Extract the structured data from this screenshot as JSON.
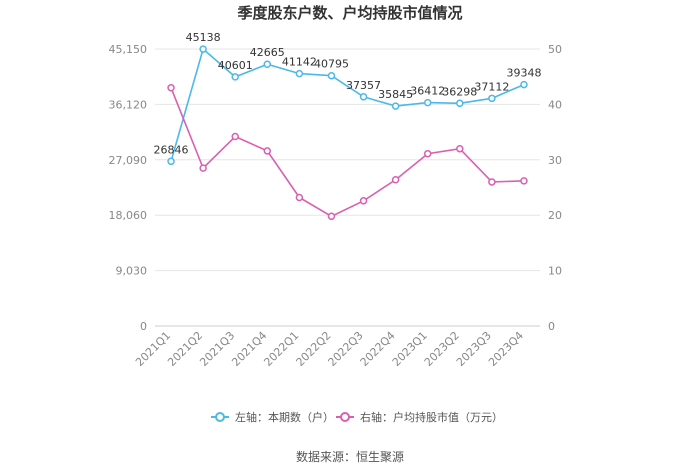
{
  "chart_data": {
    "type": "line",
    "title": "季度股东户数、户均持股市值情况",
    "categories": [
      "2021Q1",
      "2021Q2",
      "2021Q3",
      "2021Q4",
      "2022Q1",
      "2022Q2",
      "2022Q3",
      "2022Q4",
      "2023Q1",
      "2023Q2",
      "2023Q3",
      "2023Q4"
    ],
    "left_axis": {
      "min": 0,
      "max": 45150,
      "ticks": [
        "0",
        "9,030",
        "18,060",
        "27,090",
        "36,120",
        "45,150"
      ]
    },
    "right_axis": {
      "min": 0,
      "max": 50,
      "ticks": [
        "0",
        "10",
        "20",
        "30",
        "40",
        "50"
      ]
    },
    "series": [
      {
        "name": "左轴：本期数（户）",
        "axis": "left",
        "color": "#4db8e8",
        "values": [
          26846,
          45138,
          40601,
          42665,
          41142,
          40795,
          37357,
          35845,
          36412,
          36298,
          37112,
          39348
        ],
        "labels": [
          "26846",
          "45138",
          "40601",
          "42665",
          "41142",
          "40795",
          "37357",
          "35845",
          "36412",
          "36298",
          "37112",
          "39348"
        ]
      },
      {
        "name": "右轴：户均持股市值（万元）",
        "axis": "right",
        "color": "#d95fb0",
        "values": [
          43.0,
          28.5,
          34.2,
          31.6,
          23.2,
          19.8,
          22.6,
          26.4,
          31.1,
          32.0,
          26.0,
          26.2
        ]
      }
    ],
    "grid": true,
    "legend_position": "bottom"
  },
  "footer": {
    "source": "数据来源：恒生聚源"
  }
}
